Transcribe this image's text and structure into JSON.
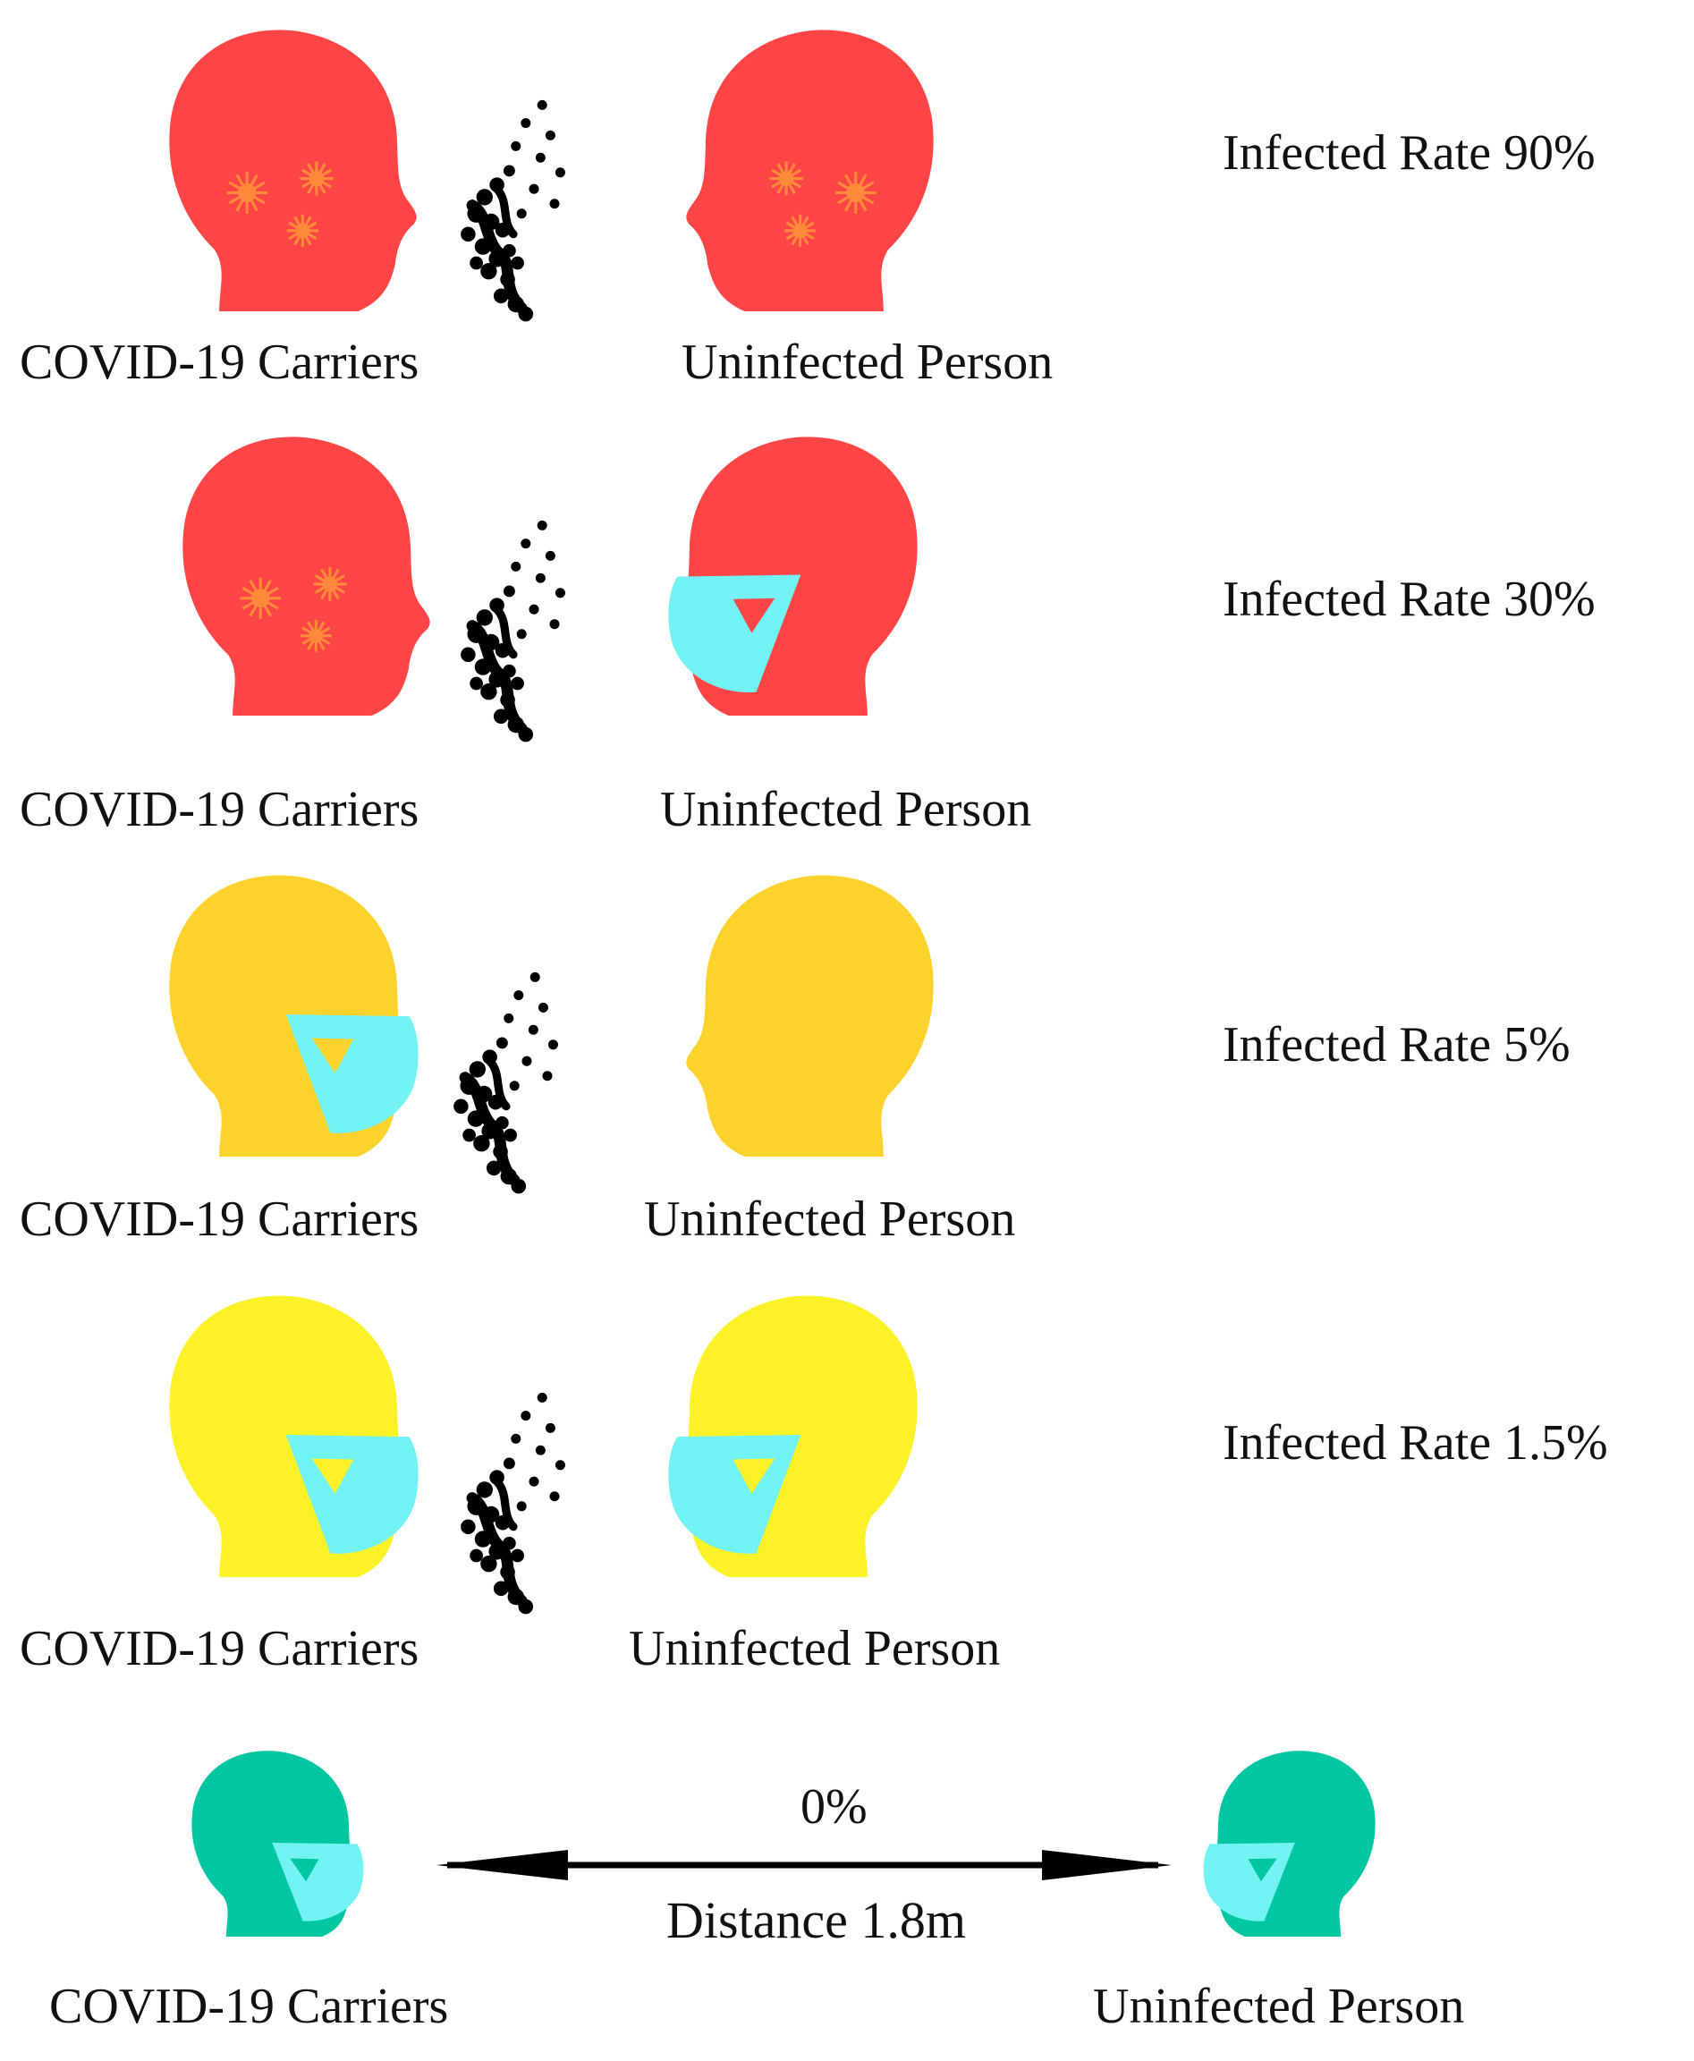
{
  "colors": {
    "red_head": "#fd4545",
    "orange_head": "#fed22c",
    "yellow_head": "#fcf227",
    "green_head": "#00c6a2",
    "mask": "#72f2f2",
    "virus": "#ff8a3a",
    "droplets": "#000000"
  },
  "rows": [
    {
      "carrier_label": "COVID-19 Carriers",
      "person_label": "Uninfected Person",
      "rate_label": "Infected Rate 90%",
      "carrier_color": "#fd4545",
      "person_color": "#fd4545",
      "carrier_masked": false,
      "person_masked": false,
      "carrier_virus": true,
      "person_virus": true
    },
    {
      "carrier_label": "COVID-19 Carriers",
      "person_label": "Uninfected Person",
      "rate_label": "Infected Rate 30%",
      "carrier_color": "#fd4545",
      "person_color": "#fd4545",
      "carrier_masked": false,
      "person_masked": true,
      "carrier_virus": true,
      "person_virus": false
    },
    {
      "carrier_label": "COVID-19 Carriers",
      "person_label": "Uninfected Person",
      "rate_label": "Infected Rate 5%",
      "carrier_color": "#fed22c",
      "person_color": "#fed22c",
      "carrier_masked": true,
      "person_masked": false,
      "carrier_virus": false,
      "person_virus": false
    },
    {
      "carrier_label": "COVID-19 Carriers",
      "person_label": "Uninfected Person",
      "rate_label": "Infected Rate 1.5%",
      "carrier_color": "#fcf227",
      "person_color": "#fcf227",
      "carrier_masked": true,
      "person_masked": true,
      "carrier_virus": false,
      "person_virus": false
    }
  ],
  "distance_row": {
    "carrier_label": "COVID-19 Carriers",
    "person_label": "Uninfected Person",
    "rate_value": "0%",
    "distance_label": "Distance 1.8m",
    "head_color": "#00c6a2"
  }
}
